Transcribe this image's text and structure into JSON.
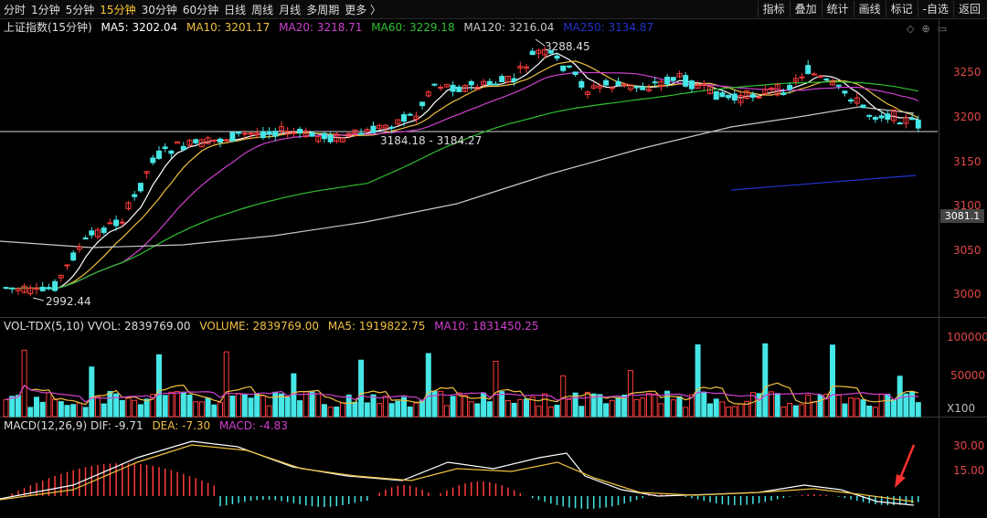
{
  "toolbar": {
    "tabs": [
      "分时",
      "1分钟",
      "5分钟",
      "15分钟",
      "30分钟",
      "60分钟",
      "日线",
      "周线",
      "月线",
      "多周期",
      "更多 〉"
    ],
    "active_tab": "15分钟",
    "right_buttons": [
      "指标",
      "叠加",
      "统计",
      "画线",
      "标记",
      "-自选",
      "返回"
    ]
  },
  "price_panel": {
    "title": "上证指数(15分钟)",
    "ma": [
      {
        "label": "MA5: 3202.04",
        "color": "#ffffff"
      },
      {
        "label": "MA10: 3201.17",
        "color": "#f0c040"
      },
      {
        "label": "MA20: 3218.71",
        "color": "#d040d0"
      },
      {
        "label": "MA60: 3229.18",
        "color": "#30c030"
      },
      {
        "label": "MA120: 3216.04",
        "color": "#c8c8c8"
      },
      {
        "label": "MA250: 3134.87",
        "color": "#2233cc"
      }
    ],
    "icons": [
      "◇",
      "⊕",
      "▭"
    ],
    "y_labels": [
      "3250",
      "3200",
      "3150",
      "3100",
      "3050",
      "3000"
    ],
    "current_price": "3081.1",
    "annotations": {
      "high": "3288.45",
      "low": "2992.44",
      "range": "3184.18 - 3184.27"
    }
  },
  "volume_panel": {
    "labels": [
      {
        "text": "VOL-TDX(5,10) VVOL: 2839769.00",
        "color": "#dddddd"
      },
      {
        "text": "VOLUME: 2839769.00",
        "color": "#f0c040"
      },
      {
        "text": "MA5: 1919822.75",
        "color": "#f0c040"
      },
      {
        "text": "MA10: 1831450.25",
        "color": "#d040d0"
      }
    ],
    "y_labels": [
      "100000",
      "50000",
      "X100"
    ]
  },
  "macd_panel": {
    "labels": [
      {
        "text": "MACD(12,26,9) DIF: -9.71",
        "color": "#dddddd"
      },
      {
        "text": "DEA: -7.30",
        "color": "#f0c040"
      },
      {
        "text": "MACD: -4.83",
        "color": "#d040d0"
      }
    ],
    "y_labels": [
      "30.00",
      "15.00"
    ]
  },
  "colors": {
    "up": "#ff3b3b",
    "down": "#46e6e6",
    "ma5": "#ffffff",
    "ma10": "#f0c040",
    "ma20": "#d040d0",
    "ma60": "#30c030",
    "ma120": "#c8c8c8",
    "ma250": "#2233cc"
  }
}
